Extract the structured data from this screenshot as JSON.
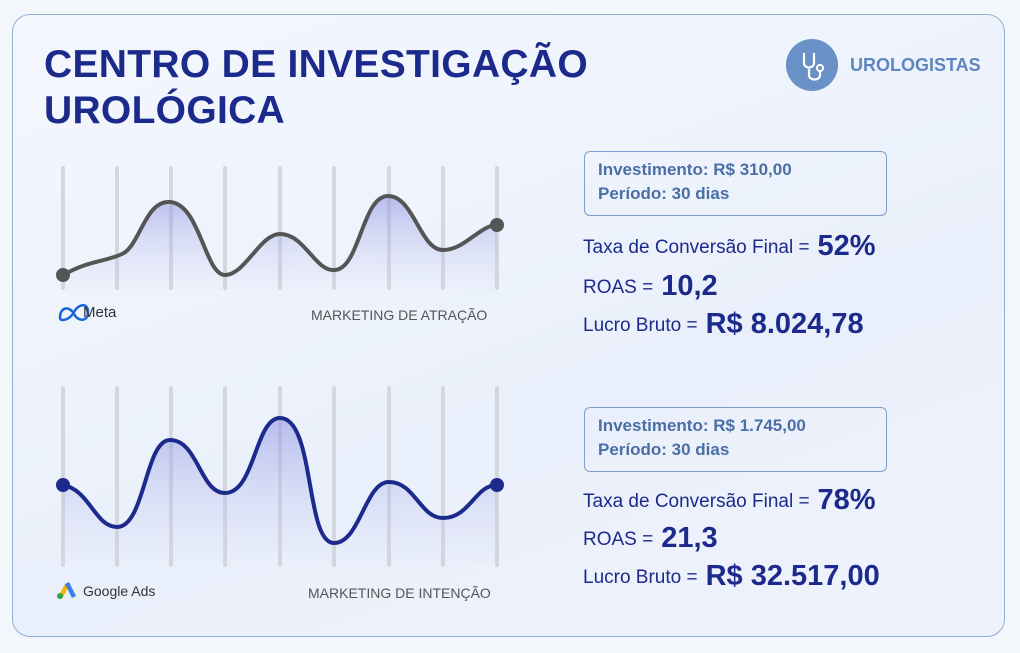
{
  "header": {
    "title_lines": [
      "CENTRO DE INVESTIGAÇÃO",
      "UROLÓGICA"
    ],
    "badge": "UROLOGISTAS"
  },
  "sections": [
    {
      "platform": "Meta",
      "channel": "MARKETING DE ATRAÇÃO",
      "investment": "Investimento: R$ 310,00",
      "period": "Período: 30 dias",
      "metrics": [
        {
          "label": "Taxa de Conversão Final =",
          "value": "52%"
        },
        {
          "label": "ROAS =",
          "value": "10,2"
        },
        {
          "label": "Lucro Bruto =",
          "value": "R$ 8.024,78"
        }
      ]
    },
    {
      "platform": "Google Ads",
      "channel": "MARKETING DE INTENÇÃO",
      "investment": "Investimento: R$ 1.745,00",
      "period": "Período: 30 dias",
      "metrics": [
        {
          "label": "Taxa de Conversão Final =",
          "value": "78%"
        },
        {
          "label": "ROAS =",
          "value": "21,3"
        },
        {
          "label": "Lucro Bruto =",
          "value": "R$ 32.517,00"
        }
      ]
    }
  ]
}
